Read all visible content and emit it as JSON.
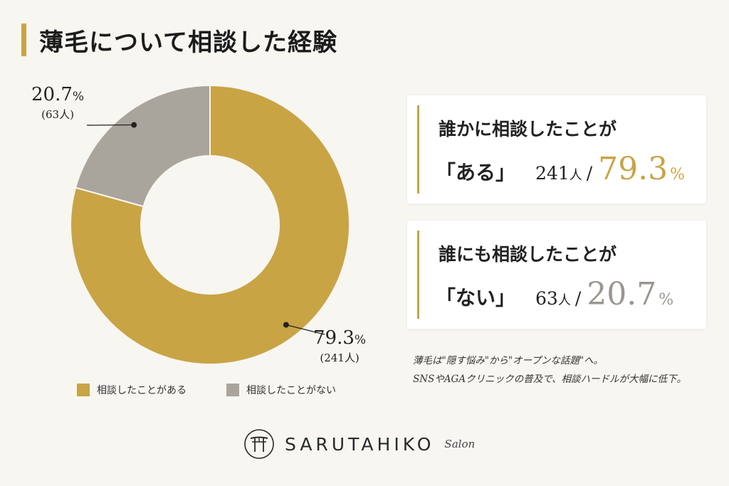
{
  "title": "薄毛について相談した経験",
  "chart_data": {
    "type": "pie",
    "title": "薄毛について相談した経験",
    "categories": [
      "相談したことがある",
      "相談したことがない"
    ],
    "values": [
      79.3,
      20.7
    ],
    "counts": [
      241,
      63
    ],
    "colors": [
      "#c9a445",
      "#aaa59c"
    ],
    "legend_position": "bottom",
    "data_labels": [
      {
        "pct": "79.3",
        "count": "(241人)"
      },
      {
        "pct": "20.7",
        "count": "(63人)"
      }
    ]
  },
  "pct_sign": "%",
  "legend": [
    "相談したことがある",
    "相談したことがない"
  ],
  "cards": [
    {
      "head": "誰かに相談したことが",
      "word": "「ある」",
      "count": "241",
      "unit": "人",
      "slash": "/",
      "pct": "79.3",
      "pct_sign": "%",
      "color": "#c9a445"
    },
    {
      "head": "誰にも相談したことが",
      "word": "「ない」",
      "count": "63",
      "unit": "人",
      "slash": "/",
      "pct": "20.7",
      "pct_sign": "%",
      "color": "#9a968f"
    }
  ],
  "note": [
    "薄毛は\"隠す悩み\"から\"オープンな話題\"へ。",
    "SNSやAGAクリニックの普及で、相談ハードルが大幅に低下。"
  ],
  "brand": {
    "name": "SARUTAHIKO",
    "sub": "Salon",
    "logo_icon": "torii-gate-icon"
  }
}
